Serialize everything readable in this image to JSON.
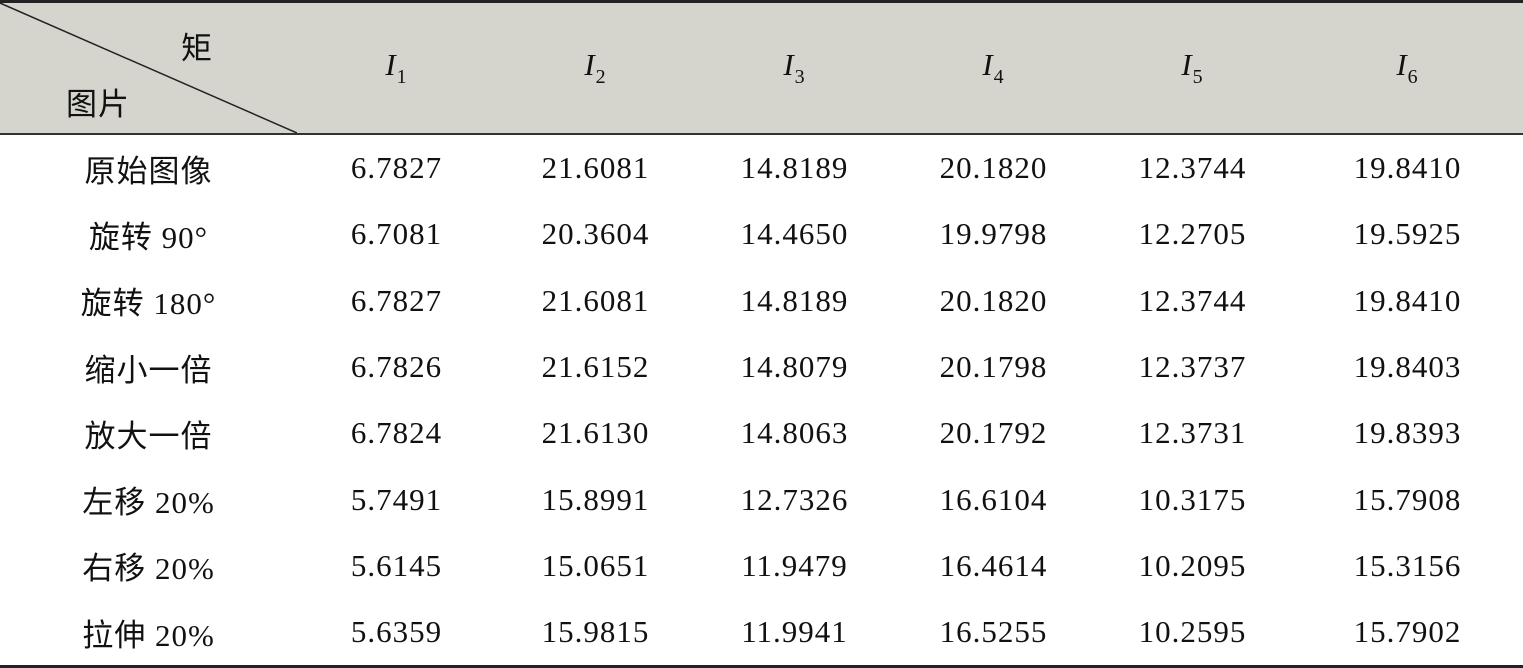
{
  "header": {
    "corner_top": "矩",
    "corner_bottom": "图片",
    "columns": [
      {
        "symbol": "I",
        "subscript": "1"
      },
      {
        "symbol": "I",
        "subscript": "2"
      },
      {
        "symbol": "I",
        "subscript": "3"
      },
      {
        "symbol": "I",
        "subscript": "4"
      },
      {
        "symbol": "I",
        "subscript": "5"
      },
      {
        "symbol": "I",
        "subscript": "6"
      }
    ]
  },
  "table": {
    "rows": [
      {
        "label": "原始图像",
        "cells": [
          "6.7827",
          "21.6081",
          "14.8189",
          "20.1820",
          "12.3744",
          "19.8410"
        ]
      },
      {
        "label": "旋转 90°",
        "cells": [
          "6.7081",
          "20.3604",
          "14.4650",
          "19.9798",
          "12.2705",
          "19.5925"
        ]
      },
      {
        "label": "旋转 180°",
        "cells": [
          "6.7827",
          "21.6081",
          "14.8189",
          "20.1820",
          "12.3744",
          "19.8410"
        ]
      },
      {
        "label": "缩小一倍",
        "cells": [
          "6.7826",
          "21.6152",
          "14.8079",
          "20.1798",
          "12.3737",
          "19.8403"
        ]
      },
      {
        "label": "放大一倍",
        "cells": [
          "6.7824",
          "21.6130",
          "14.8063",
          "20.1792",
          "12.3731",
          "19.8393"
        ]
      },
      {
        "label": "左移 20%",
        "cells": [
          "5.7491",
          "15.8991",
          "12.7326",
          "16.6104",
          "10.3175",
          "15.7908"
        ]
      },
      {
        "label": "右移 20%",
        "cells": [
          "5.6145",
          "15.0651",
          "11.9479",
          "16.4614",
          "10.2095",
          "15.3156"
        ]
      },
      {
        "label": "拉伸 20%",
        "cells": [
          "5.6359",
          "15.9815",
          "11.9941",
          "16.5255",
          "10.2595",
          "15.7902"
        ]
      }
    ]
  }
}
